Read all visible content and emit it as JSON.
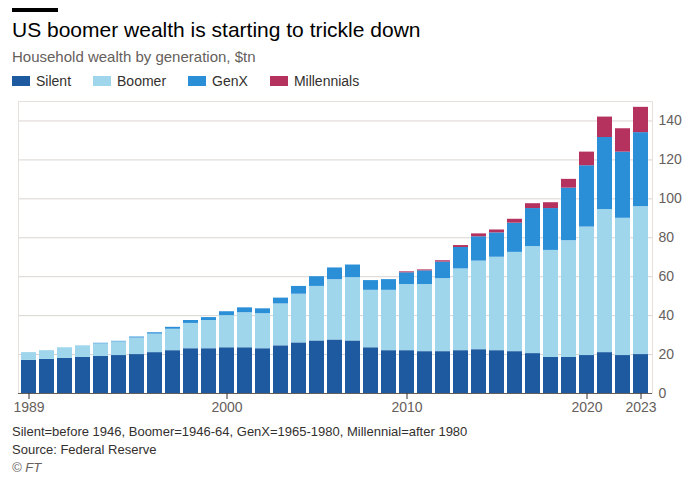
{
  "chart_data": {
    "type": "bar",
    "stacked": true,
    "title": "US boomer wealth is starting to trickle down",
    "subtitle": "Household wealth by generation, $tn",
    "notes": [
      "Silent=before 1946, Boomer=1946-64, GenX=1965-1980, Millennial=after 1980",
      "Source: Federal Reserve",
      "© FT"
    ],
    "categories": [
      "1989",
      null,
      null,
      null,
      null,
      null,
      null,
      null,
      null,
      null,
      null,
      "2000",
      null,
      null,
      null,
      null,
      null,
      null,
      null,
      null,
      null,
      "2010",
      null,
      null,
      null,
      null,
      null,
      null,
      null,
      null,
      null,
      "2020",
      null,
      null,
      "2023"
    ],
    "series": [
      {
        "name": "Silent",
        "color": "#1e5aa0",
        "values": [
          17,
          17.5,
          18,
          18.5,
          19,
          19.5,
          20,
          21,
          22,
          23,
          23,
          23.5,
          23.5,
          23,
          24.5,
          26,
          27,
          27.5,
          27,
          23.5,
          22,
          22,
          21.5,
          21.5,
          22,
          22.5,
          22,
          21.5,
          20.5,
          18.5,
          18.5,
          19.5,
          21,
          19.5,
          20
        ]
      },
      {
        "name": "Boomer",
        "color": "#9fd6ec",
        "values": [
          4,
          4.5,
          5.5,
          6,
          6.5,
          7,
          8.5,
          9.5,
          11,
          13,
          14.5,
          16.5,
          18,
          18,
          21.5,
          25,
          28,
          31,
          32.5,
          29.5,
          31,
          34,
          34.5,
          37.5,
          42,
          45.5,
          48,
          51,
          55,
          55,
          60,
          66,
          73.5,
          70.5,
          76
        ]
      },
      {
        "name": "GenX",
        "color": "#2b8fd8",
        "values": [
          0,
          0,
          0,
          0,
          0.3,
          0.3,
          0.5,
          0.7,
          1,
          1.5,
          1.5,
          2,
          2.5,
          2.5,
          3,
          4,
          5,
          6,
          6.5,
          5,
          5.5,
          6,
          7,
          8.5,
          11,
          12.5,
          12.5,
          15,
          19.5,
          21.5,
          27,
          31.5,
          37,
          34,
          38
        ]
      },
      {
        "name": "Millennials",
        "color": "#b5325f",
        "values": [
          0,
          0,
          0,
          0,
          0,
          0,
          0,
          0,
          0,
          0,
          0,
          0,
          0,
          0,
          0,
          0,
          0,
          0,
          0,
          0,
          0,
          0.5,
          0.5,
          0.7,
          1,
          1.5,
          1.5,
          2,
          2.5,
          3,
          4.5,
          7,
          10.5,
          12,
          13
        ]
      }
    ],
    "ylim": [
      0,
      150
    ],
    "yticks": [
      0,
      20,
      40,
      60,
      80,
      100,
      120,
      140
    ],
    "grid": true,
    "legend": "top"
  }
}
